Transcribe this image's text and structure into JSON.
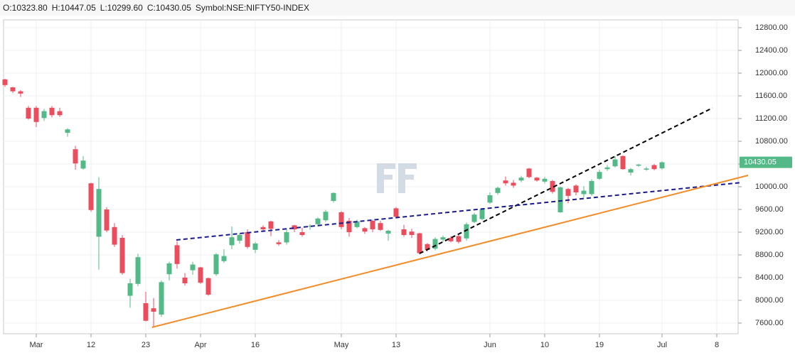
{
  "chart_data": {
    "type": "candlestick",
    "header": [
      "O:10323.80",
      "H:10447.05",
      "L:10299.60",
      "C:10430.05",
      "Symbol:NSE:NIFTY50-INDEX"
    ],
    "categories": [
      null,
      null,
      null,
      null,
      "Mar",
      null,
      null,
      null,
      null,
      null,
      null,
      "12",
      null,
      null,
      null,
      null,
      null,
      null,
      "23",
      null,
      null,
      null,
      null,
      null,
      null,
      "Apr",
      null,
      null,
      null,
      null,
      null,
      null,
      "16",
      null,
      null,
      null,
      null,
      null,
      null,
      null,
      null,
      null,
      null,
      "May",
      null,
      null,
      null,
      null,
      null,
      null,
      "13",
      null,
      null,
      null,
      null,
      null,
      null,
      null,
      null,
      null,
      null,
      null,
      "Jun",
      null,
      null,
      null,
      null,
      null,
      null,
      "10",
      null,
      null,
      null,
      null,
      null,
      null,
      "19",
      null,
      null,
      null,
      null,
      null,
      null,
      null,
      "Jul",
      null,
      null,
      null,
      null,
      null,
      null,
      "8",
      null,
      null
    ],
    "open": [
      11890,
      11750,
      11680,
      11390,
      11390,
      11210,
      11390,
      11330,
      10950,
      10660,
      10320,
      10060,
      9120,
      9600,
      9290,
      9100,
      8080,
      8290,
      7950,
      7860,
      7750,
      8460,
      8970,
      8400,
      8530,
      8580,
      8390,
      8460,
      8690,
      8970,
      9050,
      9200,
      8890,
      9290,
      9390,
      9020,
      9020,
      9320,
      9200,
      9300,
      9340,
      9410,
      9750,
      9550,
      9400,
      9290,
      9270,
      9400,
      9360,
      9175,
      9620,
      9250,
      9210,
      9180,
      8990,
      8910,
      9070,
      9100,
      9130,
      9090,
      9380,
      9430,
      9720,
      9890,
      10110,
      10070,
      10110,
      10320,
      10160,
      10090,
      10100,
      9550,
      9960,
      10020,
      9870,
      9870,
      10140,
      10310,
      10360,
      10540,
      10250,
      10370,
      10300,
      10380,
      10323.8,
      null,
      null,
      null,
      null,
      null,
      null,
      null,
      null,
      null
    ],
    "high": [
      11900,
      11760,
      11700,
      11420,
      11420,
      11370,
      11420,
      11390,
      11030,
      10720,
      10540,
      10070,
      10170,
      9640,
      9360,
      9150,
      8380,
      8820,
      8150,
      8040,
      8350,
      8680,
      9040,
      8480,
      8680,
      8590,
      8400,
      8830,
      8900,
      9300,
      9180,
      9250,
      9030,
      9320,
      9400,
      9060,
      9260,
      9330,
      9280,
      9340,
      9460,
      9590,
      9900,
      9570,
      9450,
      9420,
      9290,
      9420,
      9400,
      9240,
      9640,
      9330,
      9260,
      9190,
      9010,
      9110,
      9140,
      9130,
      9160,
      9370,
      9540,
      9620,
      9900,
      10000,
      10180,
      10120,
      10190,
      10330,
      10170,
      10170,
      10120,
      10000,
      9980,
      10040,
      10010,
      10130,
      10300,
      10380,
      10540,
      10550,
      10330,
      10400,
      10350,
      10400,
      10447.05,
      null,
      null,
      null,
      null,
      null,
      null,
      null,
      null,
      null
    ],
    "low": [
      11760,
      11650,
      11580,
      11180,
      11050,
      11160,
      11220,
      11230,
      10880,
      10300,
      10300,
      9560,
      8540,
      9200,
      8940,
      8450,
      7870,
      8250,
      7630,
      7540,
      7710,
      8350,
      8560,
      8260,
      8450,
      8290,
      8080,
      8430,
      8660,
      8900,
      9000,
      8910,
      8830,
      9230,
      9130,
      8960,
      8980,
      9200,
      9120,
      9240,
      9300,
      9380,
      9720,
      9250,
      9120,
      9270,
      9170,
      9200,
      9220,
      9050,
      9440,
      9120,
      9100,
      8810,
      8860,
      8880,
      9030,
      9020,
      9000,
      9050,
      9360,
      9410,
      9700,
      9860,
      10020,
      9980,
      10080,
      10150,
      10090,
      10060,
      9880,
      9540,
      9710,
      9850,
      9810,
      9840,
      10120,
      10280,
      10340,
      10300,
      10200,
      10350,
      10280,
      10290,
      10299.6,
      null,
      null,
      null,
      null,
      null,
      null,
      null,
      null,
      null
    ],
    "close": [
      11790,
      11680,
      11640,
      11200,
      11140,
      11330,
      11260,
      11260,
      11010,
      10410,
      10460,
      9590,
      9960,
      9230,
      8980,
      8480,
      8300,
      8760,
      7640,
      7800,
      8320,
      8650,
      8640,
      8300,
      8630,
      8310,
      8100,
      8810,
      8780,
      9110,
      9150,
      8940,
      9000,
      9250,
      9260,
      8990,
      9200,
      9250,
      9150,
      9310,
      9440,
      9560,
      9890,
      9290,
      9200,
      9390,
      9210,
      9250,
      9240,
      9225,
      9470,
      9150,
      9150,
      8830,
      8890,
      9080,
      9110,
      9040,
      9030,
      9340,
      9510,
      9600,
      9850,
      9980,
      10060,
      10020,
      10160,
      10170,
      10110,
      10140,
      9910,
      9990,
      9840,
      9900,
      9930,
      10100,
      10260,
      10340,
      10480,
      10310,
      10310,
      10390,
      10320,
      10310,
      10430.05,
      null,
      null,
      null,
      null,
      null,
      null,
      null,
      null,
      null
    ],
    "up_color": "#53b987",
    "down_color": "#eb4d5c",
    "ylim": [
      7412.5,
      12937.5
    ],
    "yticks": [
      {
        "value": 7600,
        "label": "7600.00"
      },
      {
        "value": 8000,
        "label": "8000.00"
      },
      {
        "value": 8400,
        "label": "8400.00"
      },
      {
        "value": 8800,
        "label": "8800.00"
      },
      {
        "value": 9200,
        "label": "9200.00"
      },
      {
        "value": 9600,
        "label": "9600.00"
      },
      {
        "value": 10000,
        "label": "10000.00"
      },
      {
        "value": 10400,
        "label": "10400.00"
      },
      {
        "value": 10800,
        "label": "10800.00"
      },
      {
        "value": 11200,
        "label": "11200.00"
      },
      {
        "value": 11600,
        "label": "11600.00"
      },
      {
        "value": 12000,
        "label": "12000.00"
      },
      {
        "value": 12400,
        "label": "12400.00"
      },
      {
        "value": 12800,
        "label": "12800.00"
      }
    ],
    "grid": true,
    "trendlines": [
      {
        "color": "#000000",
        "dash": true,
        "x": [
          53,
          90.45
        ],
        "y": [
          8825,
          11387
        ]
      },
      {
        "color": "#1a1a8c",
        "dash": true,
        "x": [
          21.9,
          94.2
        ],
        "y": [
          9062,
          10075
        ]
      },
      {
        "color": "#f28c28",
        "dash": false,
        "x": [
          18.8,
          95
        ],
        "y": [
          7525,
          10200
        ]
      }
    ]
  }
}
